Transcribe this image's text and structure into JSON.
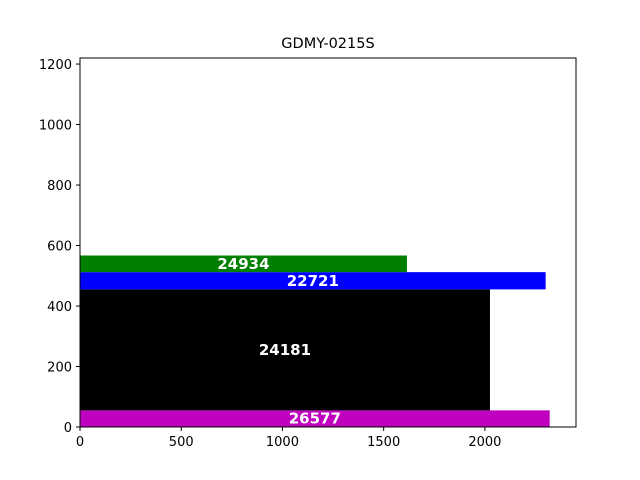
{
  "chart_data": {
    "type": "bar",
    "title": "GDMY-0215S",
    "orientation": "horizontal",
    "xlim": [
      0,
      2450
    ],
    "ylim": [
      0,
      1220
    ],
    "xticks": [
      0,
      500,
      1000,
      1500,
      2000
    ],
    "yticks": [
      0,
      200,
      400,
      600,
      800,
      1000,
      1200
    ],
    "grid": false,
    "bars": [
      {
        "label": "26577",
        "x0": 0,
        "x1": 2320,
        "y0": 0,
        "y1": 55,
        "color": "#bf00bf"
      },
      {
        "label": "24181",
        "x0": 0,
        "x1": 2025,
        "y0": 55,
        "y1": 455,
        "color": "#000000"
      },
      {
        "label": "22721",
        "x0": 0,
        "x1": 2300,
        "y0": 455,
        "y1": 512,
        "color": "#0000ff"
      },
      {
        "label": "24934",
        "x0": 0,
        "x1": 1615,
        "y0": 512,
        "y1": 567,
        "color": "#008000"
      }
    ]
  }
}
